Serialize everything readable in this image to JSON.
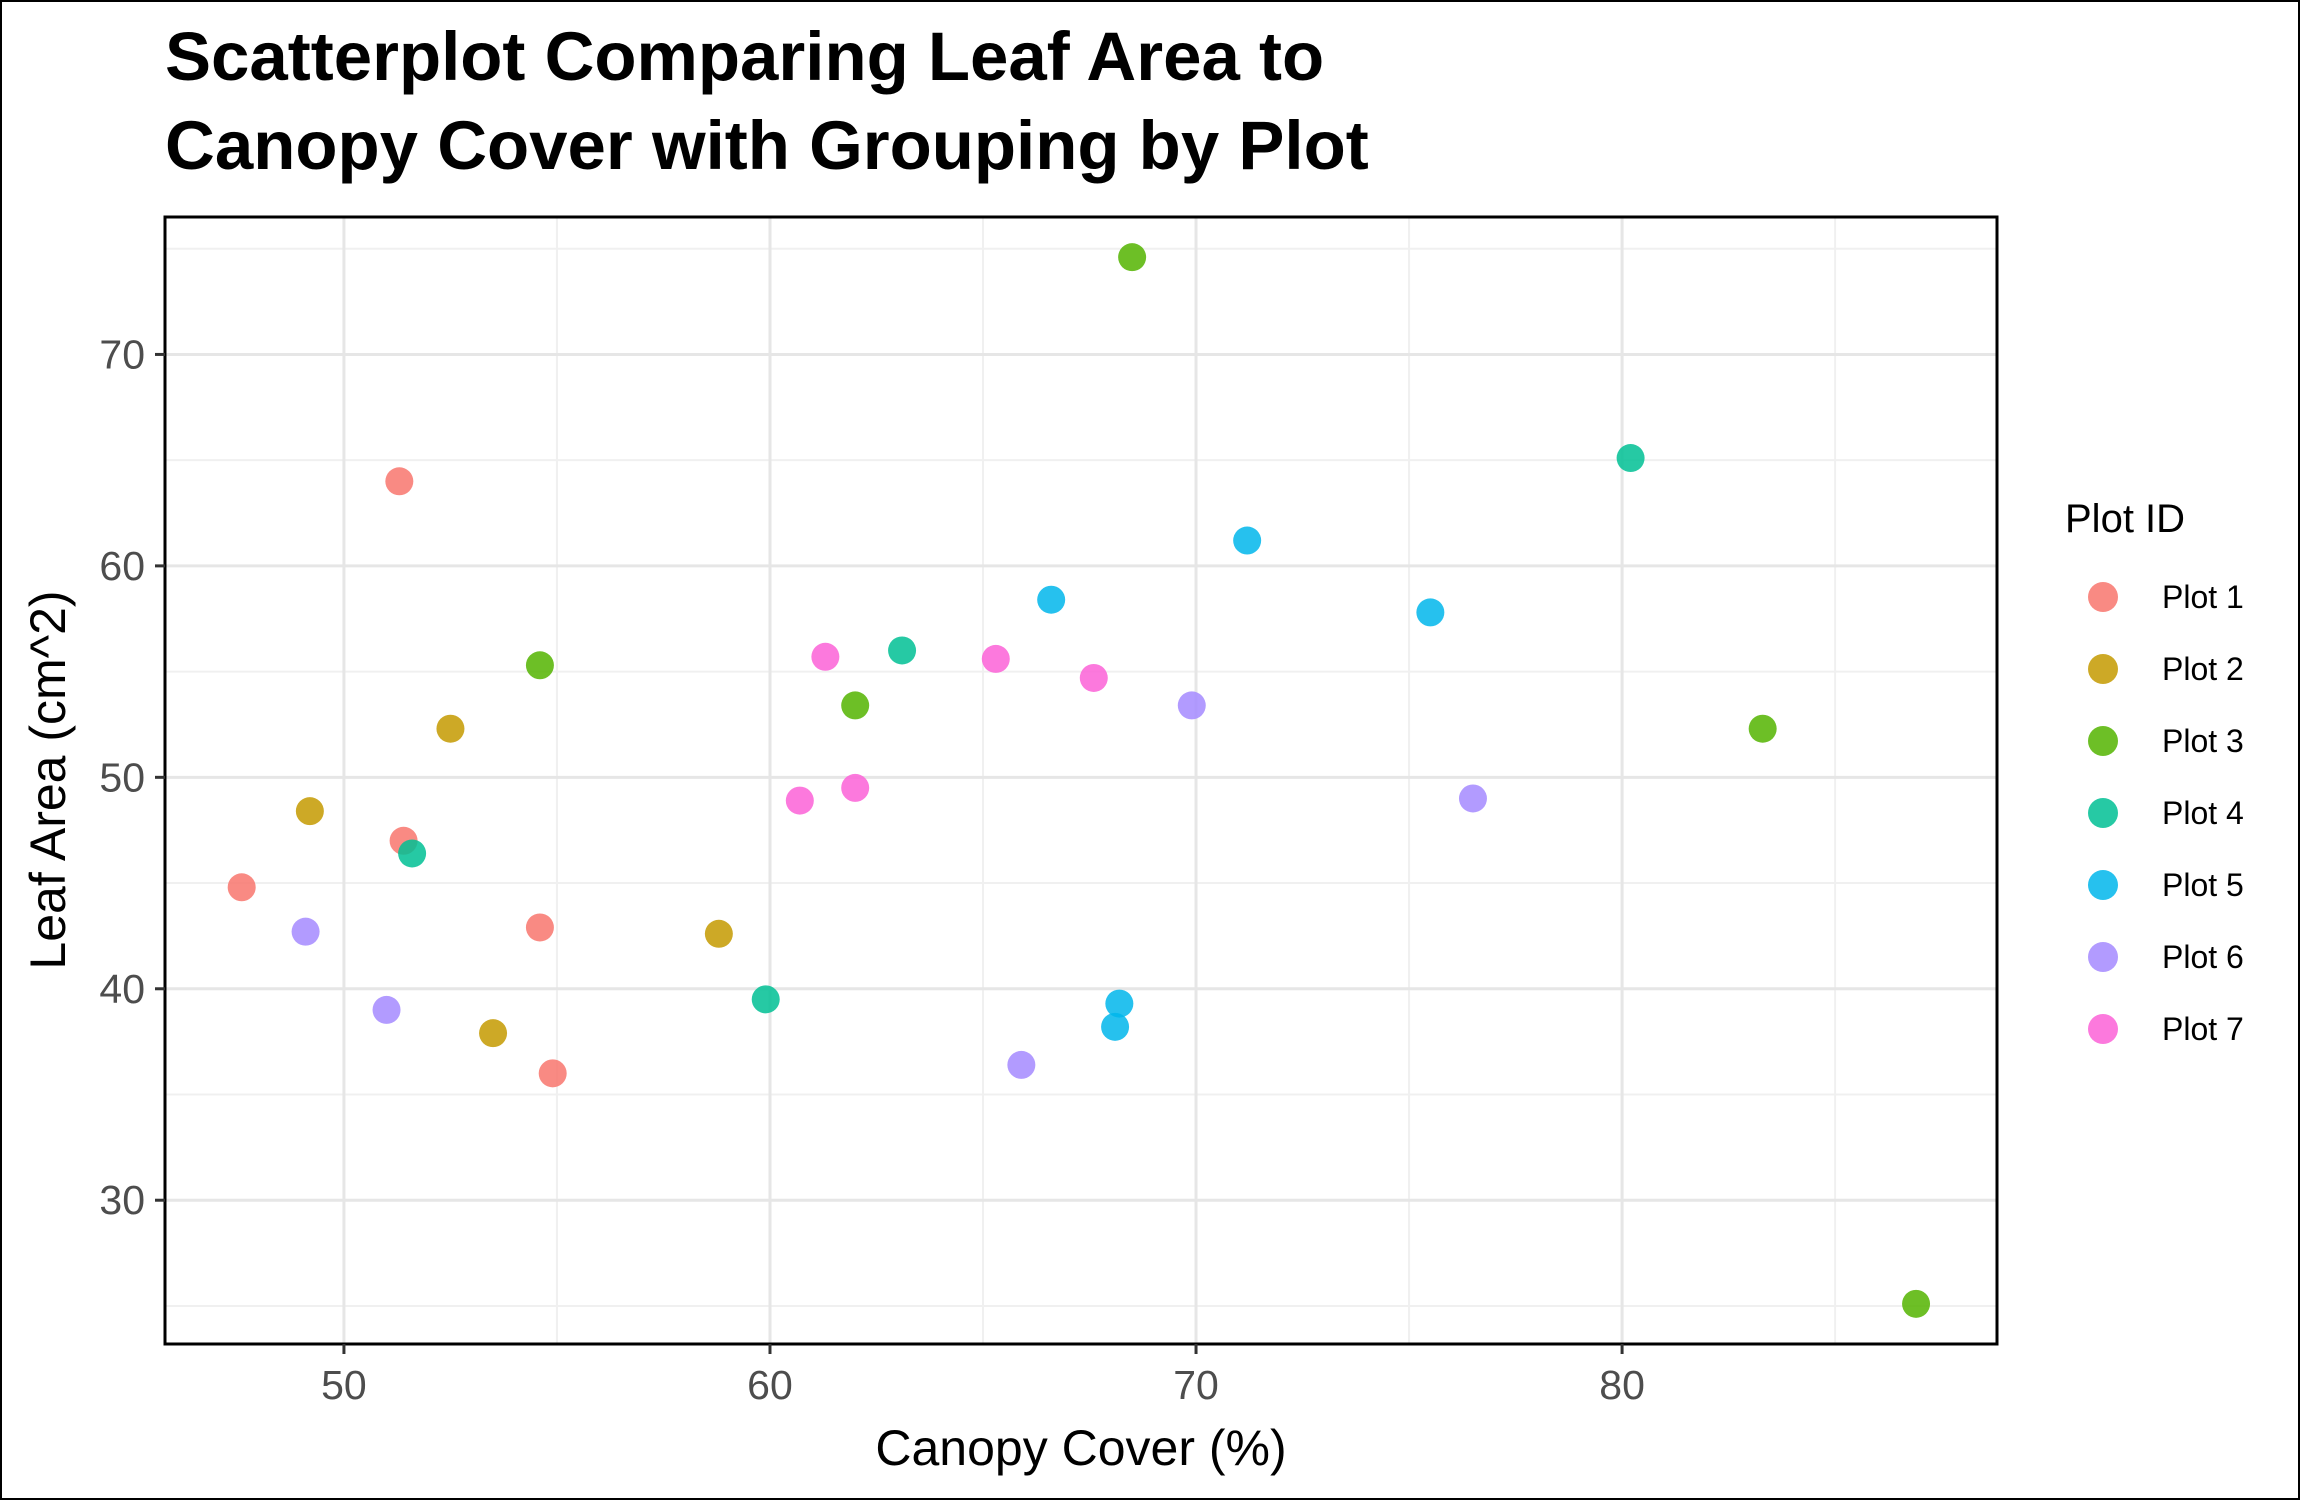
{
  "chart_data": {
    "type": "scatter",
    "title_lines": [
      "Scatterplot Comparing Leaf Area to",
      "Canopy Cover with Grouping by Plot"
    ],
    "xlabel": "Canopy Cover (%)",
    "ylabel": "Leaf Area (cm^2)",
    "xlim": [
      45.8,
      88.8
    ],
    "ylim": [
      23.2,
      76.5
    ],
    "x_ticks": [
      50,
      60,
      70,
      80
    ],
    "y_ticks": [
      30,
      40,
      50,
      60,
      70
    ],
    "grid": true,
    "legend": {
      "title": "Plot ID",
      "position": "right"
    },
    "series": [
      {
        "name": "Plot 1",
        "color": "#F8766D",
        "points": [
          [
            47.6,
            44.8
          ],
          [
            51.3,
            64.0
          ],
          [
            51.4,
            47.0
          ],
          [
            54.6,
            42.9
          ],
          [
            54.9,
            36.0
          ]
        ]
      },
      {
        "name": "Plot 2",
        "color": "#C49A00",
        "points": [
          [
            49.2,
            48.4
          ],
          [
            52.5,
            52.3
          ],
          [
            53.5,
            37.9
          ],
          [
            58.8,
            42.6
          ]
        ]
      },
      {
        "name": "Plot 3",
        "color": "#53B400",
        "points": [
          [
            54.6,
            55.3
          ],
          [
            62.0,
            53.4
          ],
          [
            68.5,
            74.6
          ],
          [
            83.3,
            52.3
          ],
          [
            86.9,
            25.1
          ]
        ]
      },
      {
        "name": "Plot 4",
        "color": "#00C094",
        "points": [
          [
            51.6,
            46.4
          ],
          [
            59.9,
            39.5
          ],
          [
            63.1,
            56.0
          ],
          [
            80.2,
            65.1
          ]
        ]
      },
      {
        "name": "Plot 5",
        "color": "#00B6EB",
        "points": [
          [
            66.6,
            58.4
          ],
          [
            68.1,
            38.2
          ],
          [
            68.2,
            39.3
          ],
          [
            71.2,
            61.2
          ],
          [
            75.5,
            57.8
          ]
        ]
      },
      {
        "name": "Plot 6",
        "color": "#A58AFF",
        "points": [
          [
            49.1,
            42.7
          ],
          [
            51.0,
            39.0
          ],
          [
            65.9,
            36.4
          ],
          [
            69.9,
            53.4
          ],
          [
            76.5,
            49.0
          ]
        ]
      },
      {
        "name": "Plot 7",
        "color": "#FB61D7",
        "points": [
          [
            60.7,
            48.9
          ],
          [
            61.3,
            55.7
          ],
          [
            62.0,
            49.5
          ],
          [
            65.3,
            55.6
          ],
          [
            67.6,
            54.7
          ]
        ]
      }
    ]
  }
}
